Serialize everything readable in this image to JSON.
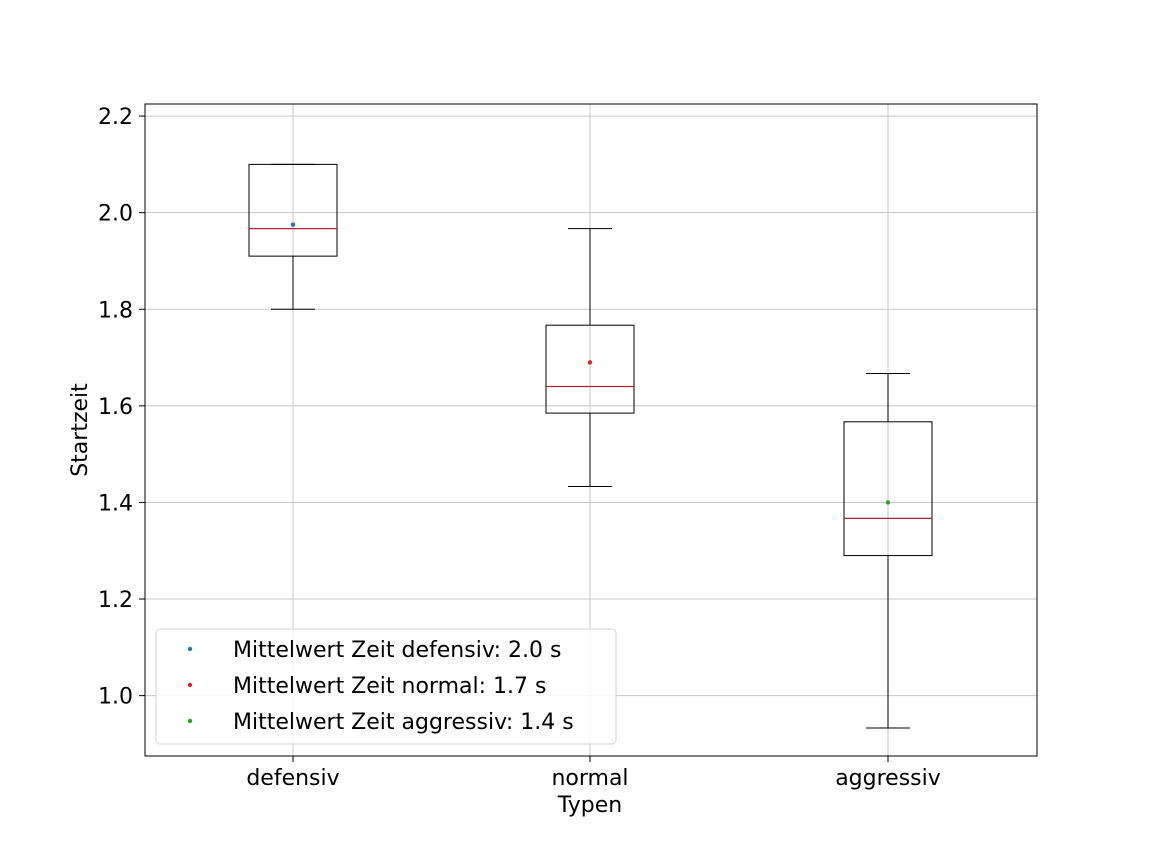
{
  "chart_data": {
    "type": "box",
    "title": "",
    "xlabel": "Typen",
    "ylabel": "Startzeit",
    "ylim": [
      0.875,
      2.225
    ],
    "yticks": [
      "1.0",
      "1.2",
      "1.4",
      "1.6",
      "1.8",
      "2.0",
      "2.2"
    ],
    "grid": true,
    "legend_position": "lower-left",
    "categories": [
      "defensiv",
      "normal",
      "aggressiv"
    ],
    "boxes": [
      {
        "category": "defensiv",
        "whisker_low": 1.8,
        "q1": 1.91,
        "median": 1.967,
        "q3": 2.1,
        "whisker_high": 2.1,
        "mean": 1.975
      },
      {
        "category": "normal",
        "whisker_low": 1.433,
        "q1": 1.585,
        "median": 1.64,
        "q3": 1.767,
        "whisker_high": 1.967,
        "mean": 1.69
      },
      {
        "category": "aggressiv",
        "whisker_low": 0.933,
        "q1": 1.29,
        "median": 1.367,
        "q3": 1.567,
        "whisker_high": 1.667,
        "mean": 1.4
      }
    ],
    "legend": [
      {
        "label": "Mittelwert Zeit defensiv: 2.0 s",
        "color": "#1f77b4"
      },
      {
        "label": "Mittelwert Zeit normal:  1.7 s",
        "color": "#d62728"
      },
      {
        "label": "Mittelwert Zeit aggressiv: 1.4 s",
        "color": "#2ca02c"
      }
    ],
    "mean_colors": [
      "#1f77b4",
      "#d62728",
      "#2ca02c"
    ],
    "median_color": "#b22234"
  }
}
